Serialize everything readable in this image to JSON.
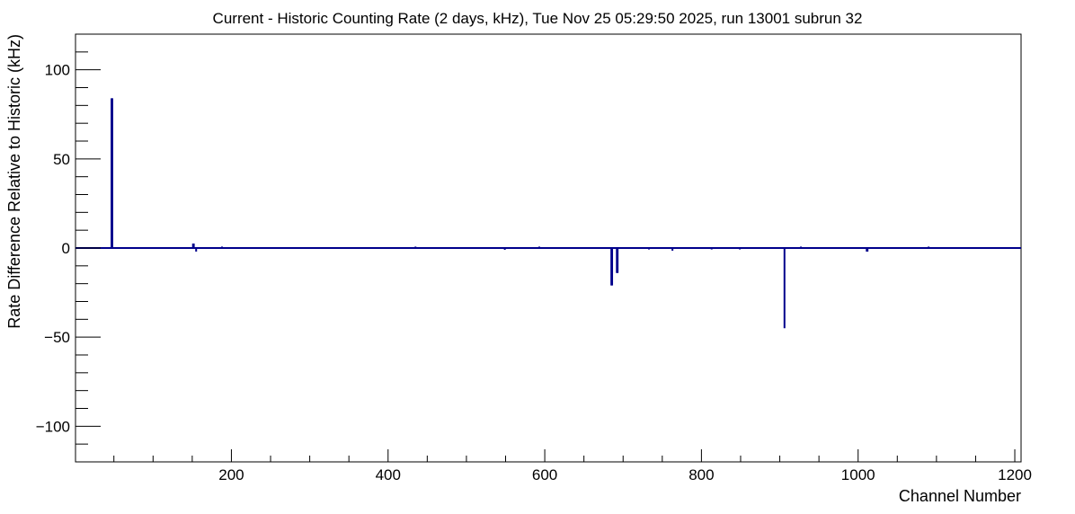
{
  "chart_data": {
    "type": "bar",
    "title": "Current - Historic Counting Rate (2 days, kHz), Tue Nov 25 05:29:50 2025, run 13001 subrun 32",
    "xlabel": "Channel Number",
    "ylabel": "Rate Difference Relative to Historic (kHz)",
    "xlim": [
      1,
      1208
    ],
    "ylim": [
      -120,
      120
    ],
    "x_ticks": [
      200,
      400,
      600,
      800,
      1000,
      1200
    ],
    "y_ticks": [
      -100,
      -50,
      0,
      50,
      100
    ],
    "x_tick_labels": [
      "200",
      "400",
      "600",
      "800",
      "1000",
      "1200"
    ],
    "y_tick_labels": [
      "−100",
      "−50",
      "0",
      "50",
      "100"
    ],
    "grid": false,
    "legend": "none",
    "color": "#00008b",
    "baseline": 0,
    "points": [
      {
        "x": 47,
        "y": 84
      },
      {
        "x": 48,
        "y": 84
      },
      {
        "x": 151,
        "y": 2.5
      },
      {
        "x": 152,
        "y": 2.5
      },
      {
        "x": 155,
        "y": -2
      },
      {
        "x": 188,
        "y": 0.8
      },
      {
        "x": 435,
        "y": 0.8
      },
      {
        "x": 549,
        "y": -1
      },
      {
        "x": 593,
        "y": 0.8
      },
      {
        "x": 685,
        "y": -21
      },
      {
        "x": 686,
        "y": -21
      },
      {
        "x": 692,
        "y": -14
      },
      {
        "x": 693,
        "y": -14
      },
      {
        "x": 733,
        "y": -0.8
      },
      {
        "x": 763,
        "y": -1.5
      },
      {
        "x": 813,
        "y": -0.8
      },
      {
        "x": 849,
        "y": -0.8
      },
      {
        "x": 906,
        "y": -45
      },
      {
        "x": 927,
        "y": 0.8
      },
      {
        "x": 1011,
        "y": -2
      },
      {
        "x": 1012,
        "y": -2
      },
      {
        "x": 1090,
        "y": 0.8
      }
    ]
  }
}
